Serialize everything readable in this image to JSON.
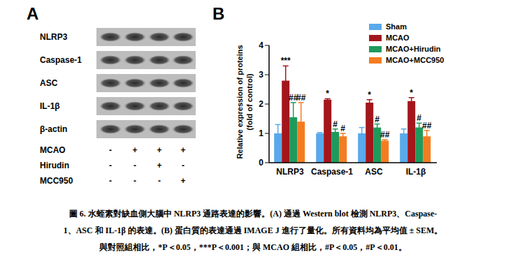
{
  "panel_a": {
    "label": "A",
    "blots": [
      "NLRP3",
      "Caspase-1",
      "ASC",
      "IL-1β",
      "β-actin"
    ],
    "treatments": [
      {
        "name": "MCAO",
        "signs": [
          "-",
          "+",
          "+",
          "+"
        ]
      },
      {
        "name": "Hirudin",
        "signs": [
          "-",
          "-",
          "+",
          "-"
        ]
      },
      {
        "name": "MCC950",
        "signs": [
          "-",
          "-",
          "-",
          "+"
        ]
      }
    ]
  },
  "chart_data": {
    "label": "B",
    "type": "bar",
    "y_label": [
      "Relative expression of proteins",
      "(fold of control)"
    ],
    "categories": [
      "NLRP3",
      "Caspase-1",
      "ASC",
      "IL-1β"
    ],
    "series": [
      {
        "name": "Sham",
        "color": "#5aa9ea",
        "values": [
          1.0,
          1.0,
          1.0,
          1.0
        ],
        "errors": [
          0.3,
          0.03,
          0.2,
          0.15
        ]
      },
      {
        "name": "MCAO",
        "color": "#a3161c",
        "values": [
          2.8,
          2.15,
          2.05,
          2.1
        ],
        "errors": [
          0.5,
          0.03,
          0.1,
          0.12
        ],
        "significance": [
          "***",
          "*",
          "*",
          "*"
        ]
      },
      {
        "name": "MCAO+Hirudin",
        "color": "#1f9a5c",
        "values": [
          1.55,
          1.05,
          1.2,
          1.2
        ],
        "errors": [
          0.5,
          0.1,
          0.12,
          0.15
        ],
        "significance": [
          "##",
          "#",
          "#",
          "#"
        ]
      },
      {
        "name": "MCAO+MCC950",
        "color": "#f47c20",
        "values": [
          1.4,
          0.9,
          0.75,
          0.9
        ],
        "errors": [
          0.65,
          0.1,
          0.03,
          0.2
        ],
        "significance": [
          "##",
          "#",
          "##",
          "##"
        ]
      }
    ],
    "ylim": [
      0,
      4
    ],
    "yticks": [
      0,
      1,
      2,
      3,
      4
    ],
    "legend": "upper right"
  },
  "caption": [
    "圖 6. 水蛭素對缺血側大腦中 NLRP3 通路表達的影響。(A) 通過 Western blot 檢測 NLRP3、Caspase-",
    "1、ASC 和 IL-1β 的表達。(B) 蛋白質的表達通過 IMAGE J 進行了量化。所有資料均為平均值 ± SEM。",
    "與對照組相比，*P＜0.05，***P＜0.001；與 MCAO 組相比，#P＜0.05，#P＜0.01。"
  ]
}
